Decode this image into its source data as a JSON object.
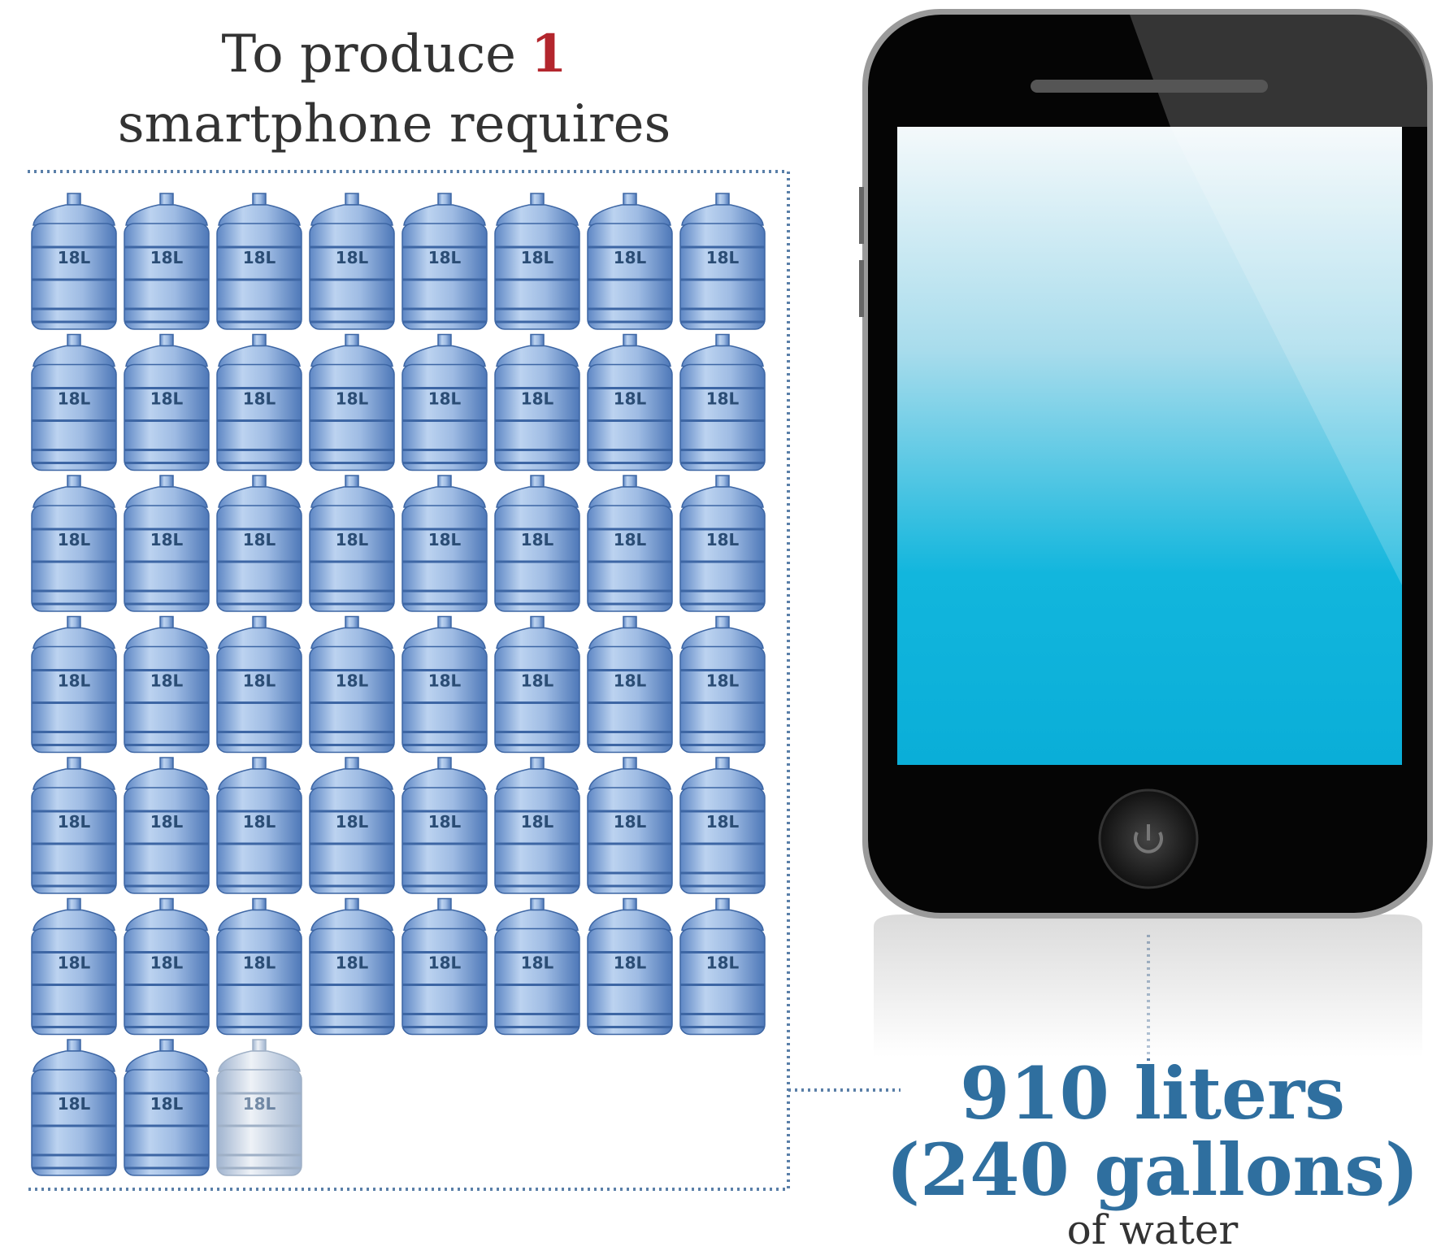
{
  "title": {
    "prefix": "To produce",
    "number": 1,
    "line2": "smartphone requires"
  },
  "bottle_label": "18L",
  "result": {
    "liters": "910 liters",
    "gallons": "(240 gallons)",
    "suffix": "of water"
  }
}
